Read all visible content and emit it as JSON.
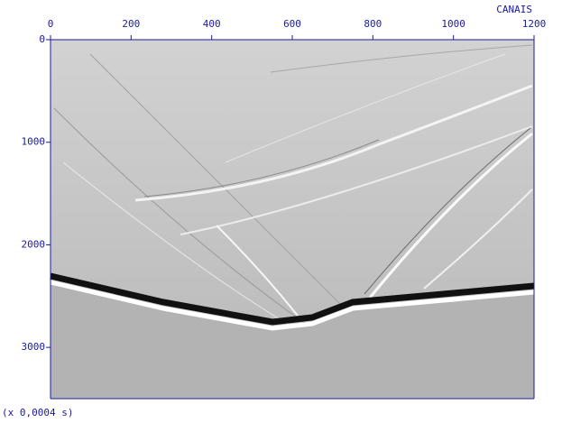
{
  "chart_data": {
    "type": "seismic",
    "x_label": "CANAIS",
    "y_label": "(x 0,0004 s)",
    "xlim": [
      0,
      1200
    ],
    "xticks": [
      0,
      200,
      400,
      600,
      800,
      1000,
      1200
    ],
    "ylim": [
      0,
      3500
    ],
    "yticks": [
      0,
      1000,
      2000,
      3000
    ]
  }
}
